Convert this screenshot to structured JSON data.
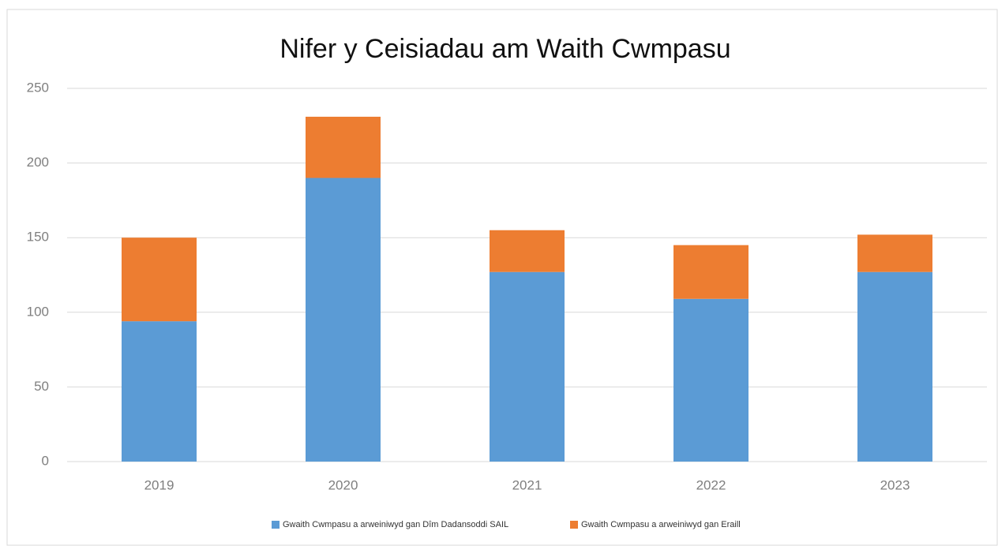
{
  "chart_data": {
    "type": "stacked_bar",
    "title": "Nifer y Ceisiadau am Waith Cwmpasu",
    "categories": [
      "2019",
      "2020",
      "2021",
      "2022",
      "2023"
    ],
    "series": [
      {
        "name": "Gwaith Cwmpasu a arweiniwyd gan Dîm Dadansoddi SAIL",
        "color": "#5b9bd5",
        "values": [
          94,
          190,
          127,
          109,
          127
        ]
      },
      {
        "name": "Gwaith Cwmpasu a arweiniwyd gan Eraill",
        "color": "#ed7d31",
        "values": [
          56,
          41,
          28,
          36,
          25
        ]
      }
    ],
    "ylim": [
      0,
      250
    ],
    "yticks": [
      0,
      50,
      100,
      150,
      200,
      250
    ],
    "grid": true,
    "legend": "bottom"
  }
}
